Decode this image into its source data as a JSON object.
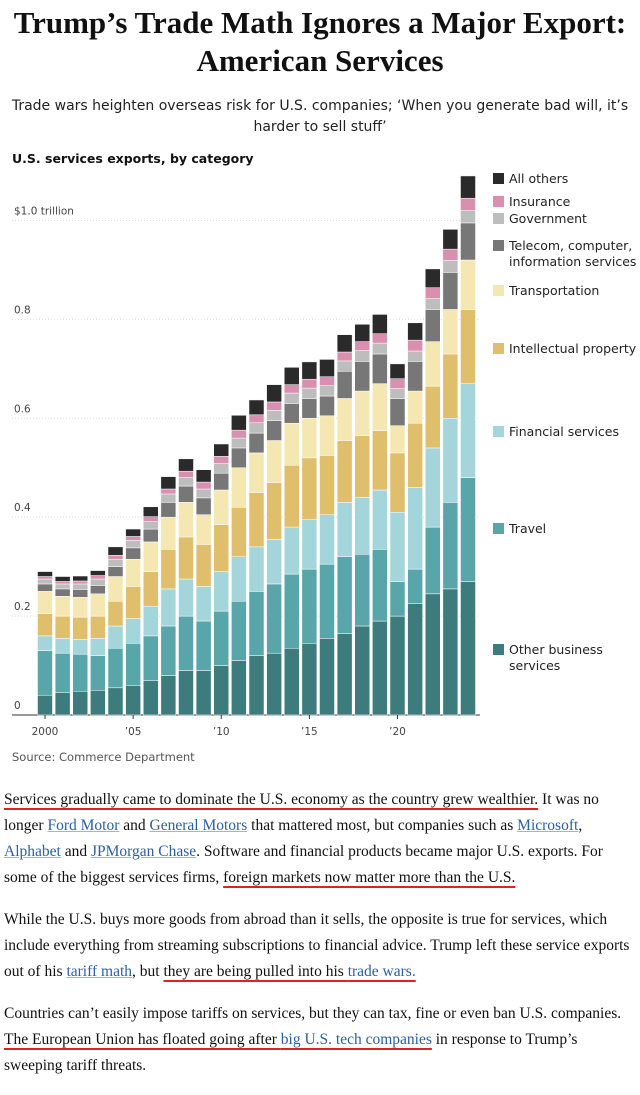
{
  "header": {
    "title": "Trump’s Trade Math Ignores a Major Export: American Services",
    "subtitle": "Trade wars heighten overseas risk for U.S. companies; ‘When you generate bad will, it’s harder to sell stuff’"
  },
  "chart_data": {
    "type": "stacked-bar",
    "title": "U.S. services exports, by category",
    "source": "Source: Commerce Department",
    "categories": [
      "2000",
      null,
      null,
      null,
      null,
      "’05",
      null,
      null,
      null,
      null,
      "’10",
      null,
      null,
      null,
      null,
      "’15",
      null,
      null,
      null,
      null,
      "’20",
      null,
      null,
      null,
      null
    ],
    "ylim": [
      0,
      1.1
    ],
    "yticks": [
      0,
      0.2,
      0.4,
      0.6,
      0.8,
      {
        "value": 1.0,
        "label": "$1.0 trillion"
      }
    ],
    "grid": true,
    "legend": "right",
    "series": [
      {
        "name": "Other business services",
        "color": "#3d7b7c",
        "values": [
          0.04,
          0.045,
          0.048,
          0.05,
          0.055,
          0.06,
          0.07,
          0.08,
          0.09,
          0.09,
          0.1,
          0.11,
          0.12,
          0.125,
          0.135,
          0.145,
          0.155,
          0.165,
          0.18,
          0.19,
          0.2,
          0.225,
          0.245,
          0.255,
          0.27
        ]
      },
      {
        "name": "Travel",
        "color": "#58a6aa",
        "values": [
          0.09,
          0.08,
          0.075,
          0.07,
          0.08,
          0.085,
          0.09,
          0.1,
          0.11,
          0.1,
          0.11,
          0.12,
          0.13,
          0.14,
          0.15,
          0.15,
          0.15,
          0.155,
          0.145,
          0.145,
          0.07,
          0.07,
          0.135,
          0.175,
          0.21
        ]
      },
      {
        "name": "Financial services",
        "color": "#a4d5db",
        "values": [
          0.03,
          0.03,
          0.03,
          0.035,
          0.045,
          0.05,
          0.06,
          0.075,
          0.075,
          0.07,
          0.08,
          0.09,
          0.09,
          0.09,
          0.095,
          0.1,
          0.1,
          0.11,
          0.115,
          0.12,
          0.14,
          0.165,
          0.16,
          0.17,
          0.19
        ]
      },
      {
        "name": "Intellectual property",
        "color": "#e0bf6c",
        "values": [
          0.045,
          0.045,
          0.045,
          0.045,
          0.05,
          0.065,
          0.07,
          0.08,
          0.085,
          0.085,
          0.095,
          0.1,
          0.11,
          0.115,
          0.125,
          0.125,
          0.12,
          0.125,
          0.125,
          0.12,
          0.12,
          0.13,
          0.125,
          0.13,
          0.15
        ]
      },
      {
        "name": "Transportation",
        "color": "#f5e7b2",
        "values": [
          0.045,
          0.04,
          0.04,
          0.045,
          0.05,
          0.055,
          0.06,
          0.065,
          0.07,
          0.06,
          0.07,
          0.08,
          0.08,
          0.085,
          0.085,
          0.08,
          0.08,
          0.085,
          0.09,
          0.095,
          0.055,
          0.065,
          0.09,
          0.09,
          0.1
        ]
      },
      {
        "name": "Telecom, computer, information services",
        "color": "#777777",
        "values": [
          0.015,
          0.015,
          0.016,
          0.017,
          0.02,
          0.023,
          0.026,
          0.03,
          0.033,
          0.034,
          0.034,
          0.04,
          0.04,
          0.04,
          0.04,
          0.04,
          0.04,
          0.055,
          0.06,
          0.06,
          0.055,
          0.06,
          0.065,
          0.075,
          0.075
        ]
      },
      {
        "name": "Government",
        "color": "#bdbdbd",
        "values": [
          0.01,
          0.01,
          0.011,
          0.013,
          0.015,
          0.015,
          0.015,
          0.017,
          0.017,
          0.018,
          0.02,
          0.02,
          0.021,
          0.021,
          0.021,
          0.021,
          0.021,
          0.021,
          0.022,
          0.022,
          0.02,
          0.021,
          0.022,
          0.024,
          0.025
        ]
      },
      {
        "name": "Insurance",
        "color": "#d88fb0",
        "values": [
          0.005,
          0.005,
          0.006,
          0.007,
          0.008,
          0.008,
          0.01,
          0.01,
          0.013,
          0.014,
          0.014,
          0.016,
          0.016,
          0.017,
          0.017,
          0.018,
          0.018,
          0.018,
          0.018,
          0.019,
          0.02,
          0.022,
          0.022,
          0.023,
          0.025
        ]
      },
      {
        "name": "All others",
        "color": "#2a2a2a",
        "values": [
          0.01,
          0.01,
          0.01,
          0.01,
          0.017,
          0.015,
          0.02,
          0.025,
          0.025,
          0.025,
          0.025,
          0.03,
          0.03,
          0.035,
          0.035,
          0.035,
          0.035,
          0.035,
          0.035,
          0.039,
          0.03,
          0.035,
          0.038,
          0.04,
          0.045
        ]
      }
    ]
  },
  "article": {
    "paragraphs": [
      [
        "Services gradually came to dominate the U.S. economy as the country grew wealthier.",
        " It was no longer ",
        "Ford Motor",
        " and ",
        "General Motors",
        " that mattered most, but companies such as ",
        "Microsoft",
        ", ",
        "Alphabet",
        " and ",
        "JPMorgan Chase",
        ". Software and financial products became major U.S. exports. For some of the biggest services firms, ",
        "foreign markets now matter more than the U.S."
      ],
      [
        "While the U.S. buys more goods from abroad than it sells, the opposite is true for services, which include everything from streaming subscriptions to financial advice. Trump left these service exports out of his ",
        "tariff math",
        ", but ",
        "they are being pulled into his ",
        "trade wars."
      ],
      [
        "Countries can’t easily impose tariffs on services, but they can tax, fine or even ban U.S. companies. ",
        "The European Union has floated going after ",
        "big U.S. tech companies",
        " in response to Trump’s sweeping tariff threats."
      ]
    ]
  }
}
